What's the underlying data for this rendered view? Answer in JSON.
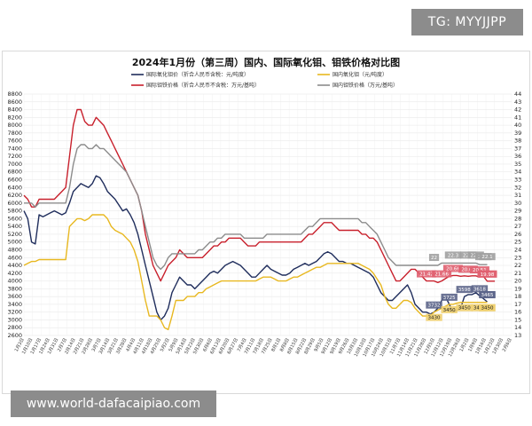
{
  "watermarks": {
    "top": "TG: MYYJJPP",
    "bottom": "www.world-dafacaipiao.com"
  },
  "chart_data": {
    "type": "line",
    "title": "2024年1月份（第三周）国内、国际氧化钼、钼铁价格对比图",
    "xlabel": "",
    "ylabel": "",
    "ylim_left": [
      2600,
      8800
    ],
    "ylim_right": [
      13,
      44
    ],
    "grid": true,
    "legend_position": "top",
    "y_left_ticks": [
      2600,
      2800,
      3000,
      3200,
      3400,
      3600,
      3800,
      4000,
      4200,
      4400,
      4600,
      4800,
      5000,
      5200,
      5400,
      5600,
      5800,
      6000,
      6200,
      6400,
      6600,
      6800,
      7000,
      7200,
      7400,
      7600,
      7800,
      8000,
      8200,
      8400,
      8600,
      8800
    ],
    "y_right_ticks": [
      13,
      14,
      15,
      16,
      17,
      18,
      19,
      20,
      21,
      22,
      23,
      24,
      25,
      26,
      27,
      28,
      29,
      30,
      31,
      32,
      33,
      34,
      35,
      36,
      37,
      38,
      39,
      40,
      41,
      42,
      43,
      44
    ],
    "x_ticks": [
      "1月3日",
      "1月10日",
      "1月17日",
      "1月24日",
      "1月31日",
      "2月7日",
      "2月14日",
      "2月21日",
      "2月28日",
      "3月7日",
      "3月14日",
      "3月21日",
      "3月28日",
      "4月4日",
      "4月11日",
      "4月18日",
      "4月25日",
      "5月2日",
      "5月9日",
      "5月16日",
      "5月23日",
      "5月30日",
      "6月6日",
      "6月13日",
      "6月20日",
      "6月27日",
      "7月4日",
      "7月11日",
      "7月18日",
      "7月25日",
      "8月1日",
      "8月8日",
      "8月15日",
      "8月22日",
      "8月29日",
      "9月5日",
      "9月12日",
      "9月19日",
      "9月26日",
      "10月3日",
      "10月10日",
      "10月17日",
      "10月24日",
      "10月31日",
      "11月7日",
      "11月14日",
      "11月21日",
      "11月28日",
      "12月5日",
      "12月12日",
      "12月19日",
      "12月26日",
      "1月2日",
      "1月9日",
      "1月16日",
      "1月23日",
      "1月30日",
      "2月6日"
    ],
    "series": [
      {
        "name": "国际氧化钼价（折合人民币含税：元/吨度）",
        "axis": "left",
        "color": "#1f2d5c",
        "values": [
          5800,
          5600,
          5000,
          4950,
          5700,
          5650,
          5700,
          5750,
          5800,
          5750,
          5700,
          5750,
          6000,
          6300,
          6400,
          6500,
          6450,
          6400,
          6500,
          6700,
          6650,
          6500,
          6300,
          6200,
          6100,
          5950,
          5800,
          5850,
          5700,
          5500,
          5200,
          4800,
          4400,
          4000,
          3600,
          3200,
          3000,
          3100,
          3300,
          3700,
          3900,
          4100,
          4000,
          3900,
          3900,
          3800,
          3900,
          4000,
          4100,
          4200,
          4250,
          4200,
          4300,
          4400,
          4450,
          4500,
          4450,
          4400,
          4300,
          4200,
          4100,
          4100,
          4200,
          4300,
          4400,
          4300,
          4250,
          4200,
          4150,
          4150,
          4200,
          4300,
          4350,
          4400,
          4450,
          4400,
          4450,
          4500,
          4600,
          4700,
          4750,
          4700,
          4600,
          4500,
          4500,
          4450,
          4450,
          4400,
          4350,
          4300,
          4250,
          4200,
          4100,
          3900,
          3700,
          3600,
          3500,
          3500,
          3600,
          3700,
          3800,
          3900,
          3700,
          3400,
          3300,
          3200,
          3200,
          3150,
          3200,
          3300,
          3500,
          3600,
          3400,
          3200,
          3250,
          3300,
          3600,
          3650,
          3650,
          3700,
          3618,
          3546,
          3465
        ]
      },
      {
        "name": "国内氧化钼（元/吨度）",
        "axis": "left",
        "color": "#e8b820",
        "values": [
          4400,
          4450,
          4500,
          4500,
          4550,
          4550,
          4550,
          4550,
          4550,
          4550,
          4550,
          4550,
          5400,
          5500,
          5600,
          5600,
          5550,
          5600,
          5700,
          5700,
          5700,
          5700,
          5600,
          5400,
          5300,
          5250,
          5200,
          5100,
          5000,
          4800,
          4500,
          4000,
          3500,
          3100,
          3100,
          3100,
          3000,
          2800,
          2750,
          3100,
          3500,
          3500,
          3500,
          3600,
          3600,
          3600,
          3700,
          3700,
          3800,
          3850,
          3900,
          3950,
          4000,
          4000,
          4000,
          4000,
          4000,
          4000,
          4000,
          4000,
          4000,
          4000,
          4050,
          4100,
          4100,
          4100,
          4050,
          4000,
          4000,
          4000,
          4050,
          4100,
          4100,
          4150,
          4200,
          4250,
          4300,
          4350,
          4350,
          4400,
          4450,
          4450,
          4450,
          4450,
          4450,
          4450,
          4450,
          4450,
          4450,
          4400,
          4350,
          4300,
          4200,
          4050,
          3900,
          3600,
          3400,
          3300,
          3300,
          3400,
          3500,
          3500,
          3450,
          3300,
          3200,
          3100,
          3100,
          3100,
          3200,
          3250,
          3300,
          3350,
          3400,
          3400,
          3430,
          3450,
          3450,
          3450,
          3450,
          3450,
          3450,
          3450,
          3450
        ]
      },
      {
        "name": "国际钼铁价格（折合人民币不含税：万元/基吨）",
        "axis": "right",
        "color": "#c8202c",
        "values": [
          31,
          30.5,
          29.5,
          29.5,
          30.5,
          30.5,
          30.5,
          30.5,
          30.5,
          31,
          31.5,
          32,
          36,
          40,
          42,
          42,
          40.5,
          40,
          40,
          41,
          40.5,
          40,
          39,
          38,
          37,
          36,
          35,
          34,
          33,
          32,
          31,
          29,
          26,
          24,
          22,
          21,
          20,
          21,
          22,
          22.5,
          23,
          24,
          23.5,
          23,
          23,
          23,
          23,
          23,
          23.5,
          24,
          24.5,
          24.5,
          25,
          25,
          25.5,
          25.5,
          25.5,
          25.5,
          25,
          24.5,
          24.5,
          24.5,
          25,
          25,
          25,
          25,
          25,
          25,
          25,
          25,
          25,
          25,
          25,
          25,
          25.5,
          26,
          26,
          26.5,
          27,
          27.5,
          27.5,
          27.5,
          27,
          26.5,
          26.5,
          26.5,
          26.5,
          26.5,
          26.5,
          26,
          26,
          25.5,
          25.5,
          25,
          24,
          23,
          22,
          21,
          20,
          20,
          20.5,
          21,
          21.5,
          21.5,
          21,
          20.5,
          20,
          20,
          20,
          19.8,
          20,
          20.3,
          20.6,
          20.7,
          20.7,
          20.6,
          20.66,
          20.6,
          20.66,
          20.66,
          20.51,
          20.6,
          19.98,
          19.98,
          19.98
        ]
      },
      {
        "name": "国内钼铁价格（万元/基吨）",
        "axis": "right",
        "color": "#8c8c8c",
        "values": [
          30,
          30,
          30,
          29.5,
          30,
          30,
          30,
          30,
          30,
          30,
          30,
          30,
          32,
          35,
          37,
          37.5,
          37.5,
          37,
          37,
          37.5,
          37,
          37,
          36.5,
          36,
          35.5,
          35,
          34.5,
          34,
          33,
          32,
          31,
          29,
          27,
          25,
          23,
          22,
          21.5,
          22,
          23,
          23.5,
          23.5,
          23.5,
          23.5,
          23.5,
          23.5,
          23.5,
          24,
          24,
          24.5,
          25,
          25,
          25.5,
          25.5,
          26,
          26,
          26,
          26,
          26,
          25.5,
          25.5,
          25.5,
          25.5,
          25.5,
          25.5,
          26,
          26,
          26,
          26,
          26,
          26,
          26,
          26,
          26,
          26,
          26.5,
          27,
          27,
          27.5,
          28,
          28,
          28,
          28,
          28,
          28,
          28,
          28,
          28,
          28,
          28,
          27.5,
          27.5,
          27,
          26.5,
          26,
          25,
          24,
          23,
          22.5,
          22,
          22,
          22,
          22,
          22,
          22,
          22,
          22,
          22,
          22,
          22,
          22,
          22.3,
          22.3,
          22.3,
          22.3,
          22.3,
          22.3,
          22.3,
          22.3,
          22.3,
          22.3,
          22.1,
          22.1,
          22.1
        ]
      }
    ],
    "annotations": [
      {
        "text": "22",
        "series": 3,
        "index": 108
      },
      {
        "text": "22.3",
        "series": 3,
        "index": 113
      },
      {
        "text": "22.3",
        "series": 3,
        "index": 117
      },
      {
        "text": "22.3",
        "series": 3,
        "index": 119
      },
      {
        "text": "22.3",
        "series": 3,
        "index": 121
      },
      {
        "text": "22.1",
        "series": 3,
        "index": 123
      },
      {
        "text": "21.42",
        "series": 2,
        "index": 106
      },
      {
        "text": "21.66",
        "series": 2,
        "index": 110
      },
      {
        "text": "20.66",
        "series": 2,
        "index": 113
      },
      {
        "text": "20.66",
        "series": 2,
        "index": 117
      },
      {
        "text": "20.51",
        "series": 2,
        "index": 120
      },
      {
        "text": "19.98",
        "series": 2,
        "index": 122
      },
      {
        "text": "19.98",
        "series": 2,
        "index": 124
      },
      {
        "text": "3732",
        "series": 0,
        "index": 108
      },
      {
        "text": "3725",
        "series": 0,
        "index": 112
      },
      {
        "text": "3598",
        "series": 0,
        "index": 116
      },
      {
        "text": "3618",
        "series": 0,
        "index": 120
      },
      {
        "text": "3546",
        "series": 0,
        "index": 123
      },
      {
        "text": "3465",
        "series": 0,
        "index": 124
      },
      {
        "text": "3430",
        "series": 1,
        "index": 108
      },
      {
        "text": "3450",
        "series": 1,
        "index": 112
      },
      {
        "text": "3450",
        "series": 1,
        "index": 116
      },
      {
        "text": "3450",
        "series": 1,
        "index": 120
      },
      {
        "text": "3450",
        "series": 1,
        "index": 123
      },
      {
        "text": "3450",
        "series": 1,
        "index": 124
      }
    ]
  }
}
